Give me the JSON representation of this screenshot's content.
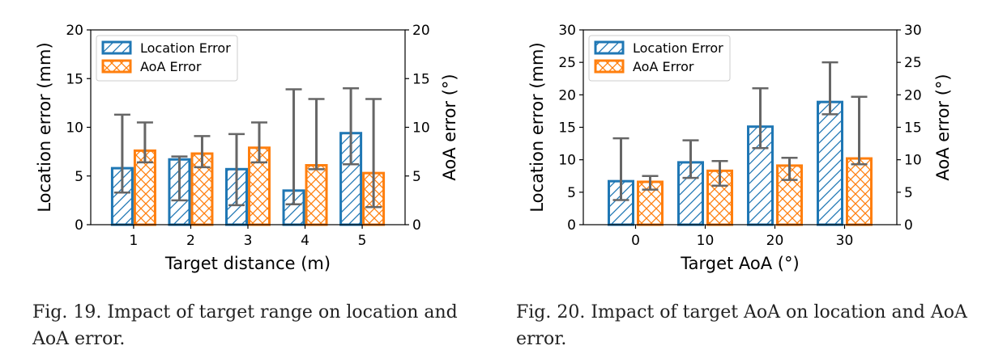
{
  "colors": {
    "location": "#1f77b4",
    "aoa": "#ff7f0e",
    "errbar": "#666666"
  },
  "chart_data": [
    {
      "type": "bar",
      "xlabel": "Target distance (m)",
      "ylabel": "Location error (mm)",
      "y2label": "AoA error (°)",
      "categories": [
        "1",
        "2",
        "3",
        "4",
        "5"
      ],
      "ylim": [
        0,
        20
      ],
      "y2lim": [
        0,
        20
      ],
      "yticks": [
        0,
        5,
        10,
        15,
        20
      ],
      "y2ticks": [
        0,
        5,
        10,
        15,
        20
      ],
      "legend": "top-left",
      "series": [
        {
          "name": "Location Error",
          "hatch": "diagonal",
          "axis": "left",
          "values": [
            5.8,
            6.7,
            5.7,
            3.5,
            9.4
          ],
          "err_low": [
            3.3,
            2.5,
            2.0,
            2.1,
            6.2
          ],
          "err_high": [
            11.3,
            7.0,
            9.3,
            13.9,
            14.0
          ]
        },
        {
          "name": "AoA Error",
          "hatch": "cross",
          "axis": "right",
          "values": [
            7.6,
            7.3,
            7.9,
            6.1,
            5.3
          ],
          "err_low": [
            6.4,
            5.9,
            6.4,
            5.7,
            1.8
          ],
          "err_high": [
            10.5,
            9.1,
            10.5,
            12.9,
            12.9
          ]
        }
      ],
      "caption": "Fig. 19.  Impact of target range on location and AoA error."
    },
    {
      "type": "bar",
      "xlabel": "Target AoA (°)",
      "ylabel": "Location error (mm)",
      "y2label": "AoA error (°)",
      "categories": [
        "0",
        "10",
        "20",
        "30"
      ],
      "ylim": [
        0,
        30
      ],
      "y2lim": [
        0,
        30
      ],
      "yticks": [
        0,
        5,
        10,
        15,
        20,
        25,
        30
      ],
      "y2ticks": [
        0,
        5,
        10,
        15,
        20,
        25,
        30
      ],
      "legend": "top-left",
      "series": [
        {
          "name": "Location Error",
          "hatch": "diagonal",
          "axis": "left",
          "values": [
            6.7,
            9.6,
            15.1,
            18.9
          ],
          "err_low": [
            3.8,
            7.2,
            11.8,
            17.0
          ],
          "err_high": [
            13.3,
            13.0,
            21.0,
            25.0
          ]
        },
        {
          "name": "AoA Error",
          "hatch": "cross",
          "axis": "right",
          "values": [
            6.6,
            8.3,
            9.1,
            10.2
          ],
          "err_low": [
            5.4,
            6.0,
            6.9,
            9.3
          ],
          "err_high": [
            7.5,
            9.8,
            10.3,
            19.7
          ]
        }
      ],
      "caption": "Fig. 20.  Impact of target AoA on location and AoA error."
    }
  ]
}
